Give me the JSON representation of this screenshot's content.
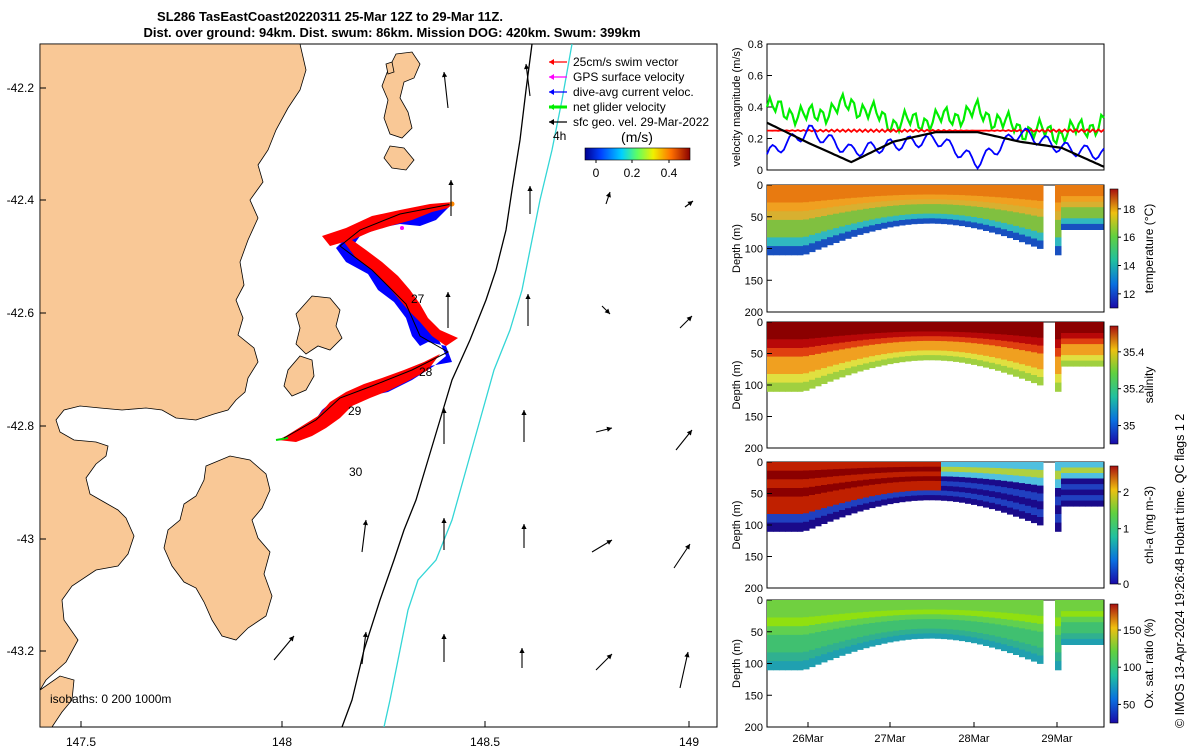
{
  "title": {
    "line1": "SL286 TasEastCoast20220311 25-Mar 12Z to 29-Mar 11Z.",
    "line2": "Dist. over ground: 94km. Dist. swum: 86km. Mission DOG: 420km. Swum: 399km"
  },
  "map": {
    "lon_ticks": [
      "147.5",
      "148",
      "148.5",
      "149"
    ],
    "lat_ticks": [
      "-42.2",
      "-42.4",
      "-42.6",
      "-42.8",
      "-43",
      "-43.2"
    ],
    "day_labels": [
      "27",
      "28",
      "29",
      "30"
    ],
    "hour_label": "4h",
    "isobaths_label": "isobaths: 0   200  1000m",
    "legend": [
      {
        "label": "25cm/s swim vector",
        "color": "#ff0000"
      },
      {
        "label": "GPS surface velocity",
        "color": "#ff00ff"
      },
      {
        "label": "dive-avg current veloc.",
        "color": "#0000ff"
      },
      {
        "label": "net glider velocity",
        "color": "#00ee00"
      },
      {
        "label": "sfc geo. vel. 29-Mar-2022",
        "color": "#000000"
      }
    ],
    "colorbar": {
      "title": "(m/s)",
      "ticks": [
        "0",
        "0.2",
        "0.4"
      ]
    },
    "colors": {
      "land": "#f9c896",
      "isobath_200": "#000000",
      "isobath_1000": "#33d6d6"
    }
  },
  "chart_data": [
    {
      "type": "line",
      "title": "",
      "ylabel": "velocity magnitude (m/s)",
      "ylim": [
        0,
        0.8
      ],
      "yticks": [
        "0",
        "0.2",
        "0.4",
        "0.6",
        "0.8"
      ],
      "x": [
        0,
        0.5,
        1,
        1.5,
        2,
        2.5,
        3,
        3.5,
        4
      ],
      "series": [
        {
          "name": "net glider velocity",
          "color": "#00ee00",
          "values": [
            0.4,
            0.34,
            0.42,
            0.3,
            0.32,
            0.37,
            0.26,
            0.23,
            0.3
          ]
        },
        {
          "name": "swim vector",
          "color": "#ff0000",
          "values": [
            0.25,
            0.25,
            0.25,
            0.25,
            0.25,
            0.25,
            0.25,
            0.25,
            0.25
          ]
        },
        {
          "name": "dive-avg current",
          "color": "#0000ff",
          "values": [
            0.1,
            0.25,
            0.12,
            0.16,
            0.2,
            0.05,
            0.24,
            0.14,
            0.1
          ]
        },
        {
          "name": "sfc geo. vel.",
          "color": "#000000",
          "values": [
            0.3,
            0.17,
            0.05,
            0.18,
            0.24,
            0.24,
            0.18,
            0.14,
            0.02
          ]
        }
      ]
    },
    {
      "type": "heatmap",
      "ylabel": "Depth (m)",
      "yticks": [
        "0",
        "50",
        "100",
        "150",
        "200"
      ],
      "colorbar_label": "temperature (°C)",
      "colorbar_ticks": [
        "12",
        "14",
        "16",
        "18"
      ]
    },
    {
      "type": "heatmap",
      "ylabel": "Depth (m)",
      "yticks": [
        "0",
        "50",
        "100",
        "150",
        "200"
      ],
      "colorbar_label": "salinity",
      "colorbar_ticks": [
        "35",
        "35.2",
        "35.4"
      ]
    },
    {
      "type": "heatmap",
      "ylabel": "Depth (m)",
      "yticks": [
        "0",
        "50",
        "100",
        "150",
        "200"
      ],
      "colorbar_label": "chl-a (mg m-3)",
      "colorbar_ticks": [
        "0",
        "1",
        "2"
      ]
    },
    {
      "type": "heatmap",
      "ylabel": "Depth (m)",
      "yticks": [
        "0",
        "50",
        "100",
        "150",
        "200"
      ],
      "colorbar_label": "Ox. sat. ratio (%)",
      "colorbar_ticks": [
        "50",
        "100",
        "150"
      ],
      "xticks": [
        "26Mar",
        "27Mar",
        "28Mar",
        "29Mar"
      ]
    }
  ],
  "side_note": "© IMOS 13-Apr-2024 19:26:48 Hobart time. QC flags 1  2"
}
